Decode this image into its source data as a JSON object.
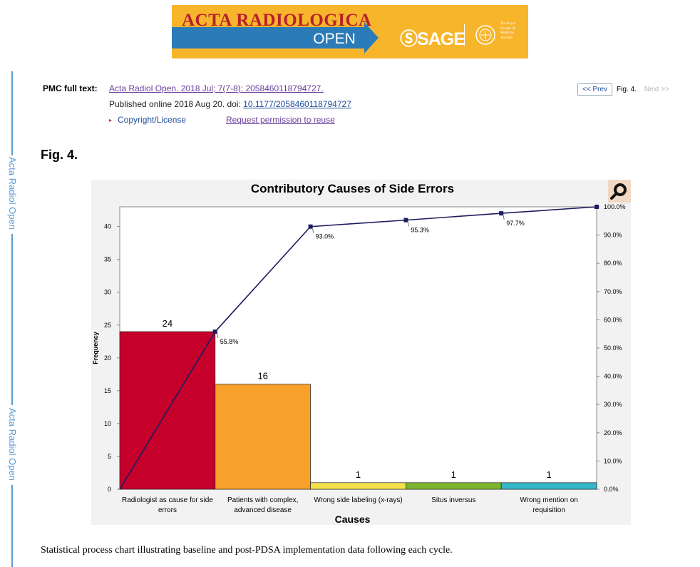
{
  "banner": {
    "journal_title": "ACTA RADIOLOGICA",
    "open_label": "OPEN",
    "publisher": "SAGE",
    "society_lines": [
      "The Royal",
      "Society of",
      "Medicine",
      "Journals"
    ]
  },
  "side_labels": [
    "Acta Radiol Open",
    "Acta Radiol Open"
  ],
  "pmc": {
    "label": "PMC full text:",
    "citation": "Acta Radiol Open. 2018 Jul; 7(7-8): 2058460118794727.",
    "published_prefix": "Published online 2018 Aug 20. doi: ",
    "doi": "10.1177/2058460118794727",
    "copyright": "Copyright/License",
    "reuse": "Request permission to reuse"
  },
  "pager": {
    "prev": "<< Prev",
    "current": "Fig. 4.",
    "next": "Next >>"
  },
  "figure": {
    "label": "Fig. 4.",
    "caption": "Statistical process chart illustrating baseline and post-PDSA implementation data following each cycle."
  },
  "chart_data": {
    "type": "bar",
    "title": "Contributory Causes of Side Errors",
    "xlabel": "Causes",
    "ylabel": "Frequency",
    "categories": [
      [
        "Radiologist as cause for side",
        "errors"
      ],
      [
        "Patients with complex,",
        "advanced disease"
      ],
      [
        "Wrong side labeling (x-rays)"
      ],
      [
        "Situs inversus"
      ],
      [
        "Wrong mention on",
        "requisition"
      ]
    ],
    "values": [
      24,
      16,
      1,
      1,
      1
    ],
    "bar_colors": [
      "#c4002b",
      "#f8a12a",
      "#f3e04b",
      "#7cb52d",
      "#35b5c8"
    ],
    "ylim": [
      0,
      43
    ],
    "yticks": [
      0,
      5,
      10,
      15,
      20,
      25,
      30,
      35,
      40
    ],
    "y2lim": [
      0,
      100
    ],
    "y2ticks": [
      "0.0%",
      "10.0%",
      "20.0%",
      "30.0%",
      "40.0%",
      "50.0%",
      "60.0%",
      "70.0%",
      "80.0%",
      "90.0%",
      "100.0%"
    ],
    "cumulative": {
      "values": [
        0,
        55.8,
        93.0,
        95.3,
        97.7,
        100.0
      ],
      "labels": [
        "",
        "55.8%",
        "93.0%",
        "95.3%",
        "97.7%",
        "100.0%"
      ],
      "color": "#1c1c5e"
    },
    "grid": false
  }
}
